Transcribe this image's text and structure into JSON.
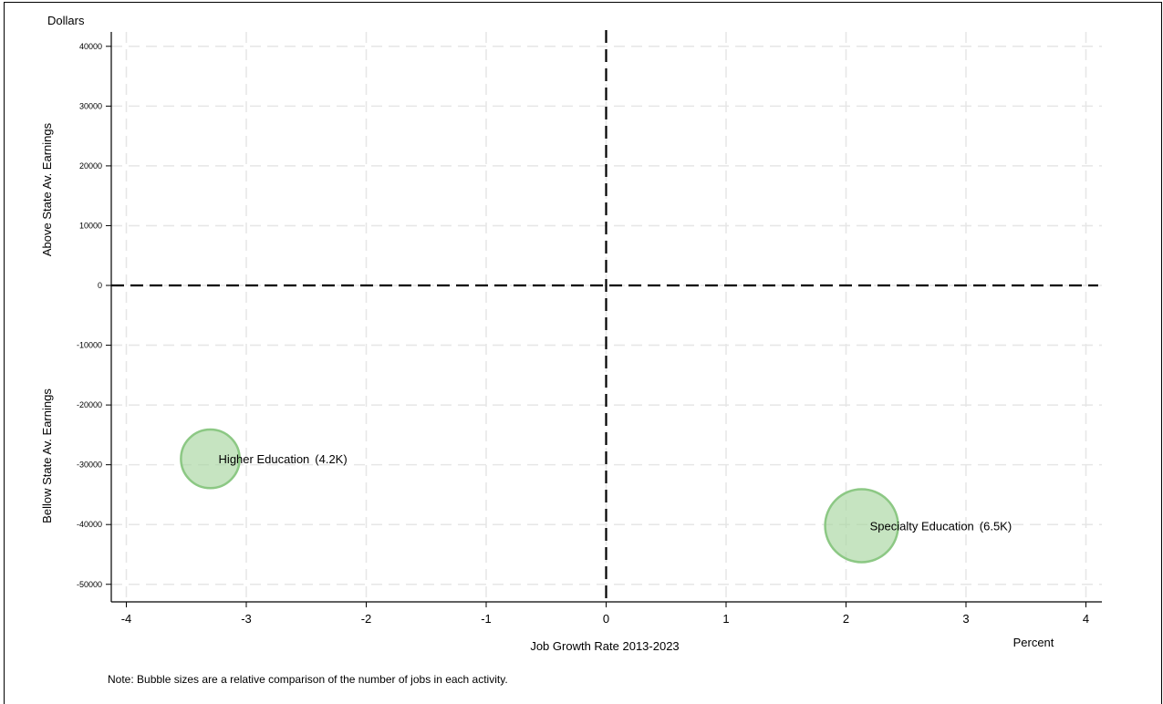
{
  "chart_data": {
    "type": "scatter",
    "title": "",
    "xlabel": "Job Growth Rate 2013-2023",
    "x_unit_label": "Percent",
    "ylabel_top": "Above State Av. Earnings",
    "ylabel_bottom": "Bellow State  Av. Earnings",
    "y_unit_label": "Dollars",
    "xlim": [
      -4.1,
      4.15
    ],
    "ylim": [
      -52000,
      42500
    ],
    "x_ticks": [
      -4,
      -3,
      -2,
      -1,
      0,
      1,
      2,
      3,
      4
    ],
    "y_ticks": [
      40000,
      30000,
      20000,
      10000,
      0,
      -10000,
      -20000,
      -30000,
      -40000,
      -50000
    ],
    "grid": true,
    "reference_lines": {
      "x": 0,
      "y": 0
    },
    "bubble_color": "#a8d5a0",
    "bubble_edge_color": "#8cc884",
    "points": [
      {
        "label": "Higher Education",
        "size_label": "(4.2K)",
        "x": -3.3,
        "y": -29000,
        "size": 4.2
      },
      {
        "label": "Specialty Education",
        "size_label": "(6.5K)",
        "x": 2.13,
        "y": -40200,
        "size": 6.5
      }
    ],
    "note": "Note: Bubble sizes are a relative comparison of the number of jobs in each activity."
  }
}
